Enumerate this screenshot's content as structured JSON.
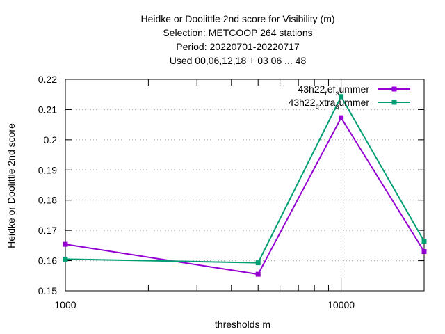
{
  "chart_data": {
    "type": "line",
    "title_lines": [
      "Heidke or Doolittle 2nd score  for Visibility (m)",
      "Selection: METCOOP    264 stations",
      "Period: 20220701-20220717",
      "Used  00,06,12,18  + 03 06 ... 48"
    ],
    "xlabel": "thresholds m",
    "ylabel": "Heidke or Doolittle 2nd score",
    "x_scale": "log",
    "xlim": [
      1000,
      20000
    ],
    "ylim": [
      0.15,
      0.22
    ],
    "x_ticks": [
      {
        "value": 1000,
        "label": "1000"
      },
      {
        "value": 10000,
        "label": "10000"
      }
    ],
    "x_minor_ticks": [
      2000,
      3000,
      4000,
      5000,
      6000,
      7000,
      8000,
      9000,
      20000
    ],
    "y_ticks": [
      {
        "value": 0.15,
        "label": "0.15"
      },
      {
        "value": 0.16,
        "label": "0.16"
      },
      {
        "value": 0.17,
        "label": "0.17"
      },
      {
        "value": 0.18,
        "label": "0.18"
      },
      {
        "value": 0.19,
        "label": "0.19"
      },
      {
        "value": 0.2,
        "label": "0.2"
      },
      {
        "value": 0.21,
        "label": "0.21"
      },
      {
        "value": 0.22,
        "label": "0.22"
      }
    ],
    "grid": true,
    "legend_position": "top-right",
    "x": [
      1000,
      5000,
      10000,
      20000
    ],
    "series": [
      {
        "name_parts": [
          {
            "text": "43h22",
            "sub": false
          },
          {
            "text": "r",
            "sub": true
          },
          {
            "text": "ef",
            "sub": false
          },
          {
            "text": "s",
            "sub": true
          },
          {
            "text": "ummer",
            "sub": false
          }
        ],
        "color": "#9400d3",
        "values": [
          0.1654,
          0.1555,
          0.2073,
          0.163
        ]
      },
      {
        "name_parts": [
          {
            "text": "43h22",
            "sub": false
          },
          {
            "text": "e",
            "sub": true
          },
          {
            "text": "xtra",
            "sub": false
          },
          {
            "text": "s",
            "sub": true
          },
          {
            "text": "ummer",
            "sub": false
          }
        ],
        "color": "#009e73",
        "values": [
          0.1605,
          0.1593,
          0.2143,
          0.1664
        ]
      }
    ]
  }
}
